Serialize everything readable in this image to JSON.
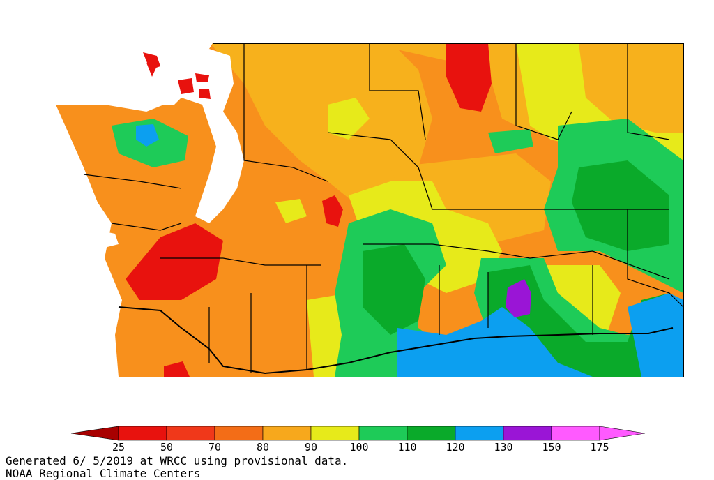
{
  "map": {
    "region": "Washington State",
    "colors": {
      "red": "#e8120e",
      "orange_red": "#f36d17",
      "orange": "#f8901c",
      "gold": "#f7b11c",
      "yellow": "#e7ea1a",
      "light_green": "#1ecb58",
      "green": "#0aaa2a",
      "blue": "#0c9ff0",
      "purple": "#9a15d6",
      "water": "#ffffff",
      "border": "#000000"
    }
  },
  "legend": {
    "ticks": [
      "25",
      "50",
      "70",
      "80",
      "90",
      "100",
      "110",
      "120",
      "130",
      "150",
      "175"
    ],
    "colors": [
      "#a80000",
      "#e8120e",
      "#f0381a",
      "#f36d17",
      "#f7a81c",
      "#e7ea1a",
      "#1ecb58",
      "#0aaa2a",
      "#0c9ff0",
      "#9a15d6",
      "#ff5aff"
    ]
  },
  "footer": {
    "generated_line": "Generated 6/ 5/2019 at WRCC using provisional data.",
    "credit_line": "NOAA Regional Climate Centers"
  }
}
